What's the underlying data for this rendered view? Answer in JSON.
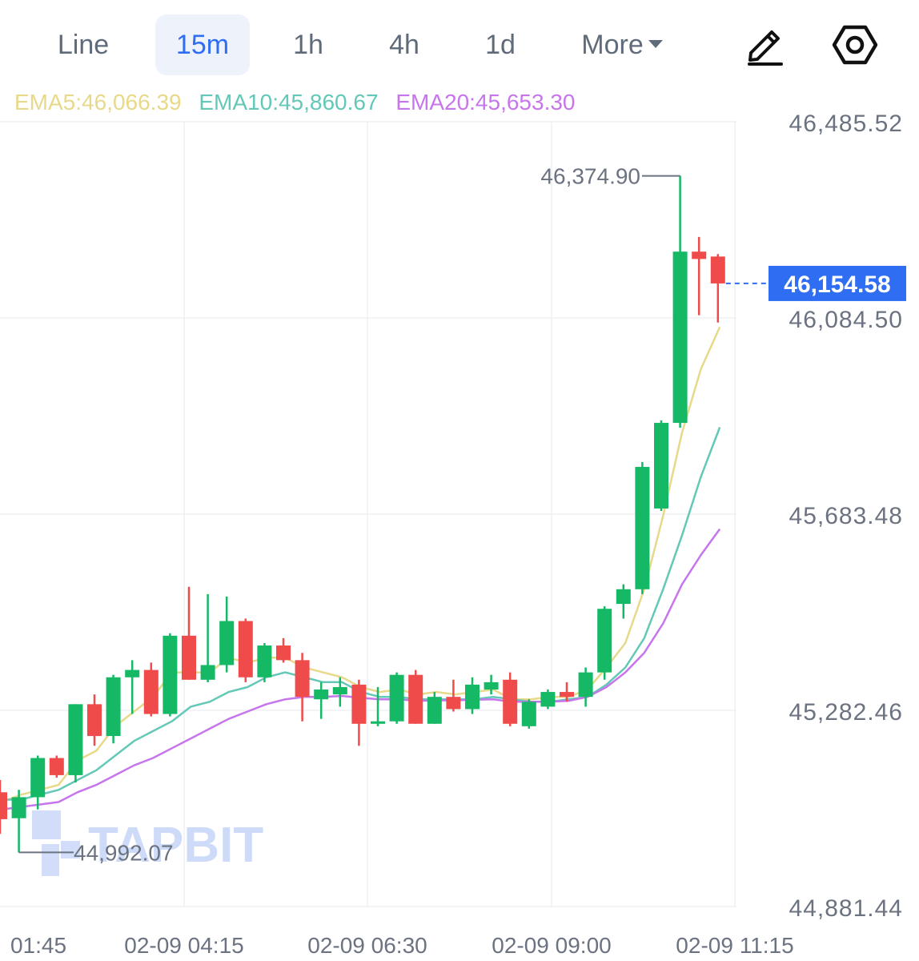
{
  "toolbar": {
    "tabs": [
      {
        "label": "Line",
        "active": false
      },
      {
        "label": "15m",
        "active": true
      },
      {
        "label": "1h",
        "active": false
      },
      {
        "label": "4h",
        "active": false
      },
      {
        "label": "1d",
        "active": false
      }
    ],
    "more_label": "More",
    "icons": [
      "pencil-icon",
      "settings-hexagon-icon"
    ]
  },
  "indicators": {
    "ema5": "EMA5:46,066.39",
    "ema10": "EMA10:45,860.67",
    "ema20": "EMA20:45,653.30",
    "colors": {
      "ema5": "#e8d98a",
      "ema10": "#63c8b7",
      "ema20": "#c775ec"
    }
  },
  "watermark": "TAPBIT",
  "colors": {
    "up": "#14b865",
    "down": "#f04b4b",
    "accent": "#2f6df3",
    "grid": "#eef0f3",
    "axis_text": "#6b7280"
  },
  "chart_data": {
    "type": "candlestick",
    "interval": "15m",
    "price_axis": {
      "ticks": [
        46485.52,
        46084.5,
        45683.48,
        45282.46,
        44881.44
      ],
      "range": [
        44881.44,
        46485.52
      ]
    },
    "time_axis": {
      "labels": [
        "01:45",
        "02-09 04:15",
        "02-09 06:30",
        "02-09 09:00",
        "02-09 11:15"
      ]
    },
    "current_price": "46,154.58",
    "high_marker": {
      "label": "46,374.90",
      "value": 46374.9
    },
    "low_marker": {
      "label": "44,992.07",
      "value": 44992.07
    },
    "candles": [
      {
        "o": 45115,
        "h": 45140,
        "l": 45030,
        "c": 45060
      },
      {
        "o": 45062,
        "h": 45120,
        "l": 44992,
        "c": 45105
      },
      {
        "o": 45105,
        "h": 45190,
        "l": 45080,
        "c": 45185
      },
      {
        "o": 45185,
        "h": 45190,
        "l": 45145,
        "c": 45150
      },
      {
        "o": 45150,
        "h": 45295,
        "l": 45135,
        "c": 45295
      },
      {
        "o": 45295,
        "h": 45315,
        "l": 45210,
        "c": 45230
      },
      {
        "o": 45230,
        "h": 45355,
        "l": 45215,
        "c": 45350
      },
      {
        "o": 45350,
        "h": 45385,
        "l": 45275,
        "c": 45365
      },
      {
        "o": 45365,
        "h": 45380,
        "l": 45270,
        "c": 45275
      },
      {
        "o": 45275,
        "h": 45440,
        "l": 45270,
        "c": 45435
      },
      {
        "o": 45435,
        "h": 45535,
        "l": 45345,
        "c": 45345
      },
      {
        "o": 45345,
        "h": 45520,
        "l": 45340,
        "c": 45375
      },
      {
        "o": 45375,
        "h": 45515,
        "l": 45360,
        "c": 45465
      },
      {
        "o": 45465,
        "h": 45470,
        "l": 45340,
        "c": 45350
      },
      {
        "o": 45350,
        "h": 45420,
        "l": 45340,
        "c": 45415
      },
      {
        "o": 45415,
        "h": 45430,
        "l": 45380,
        "c": 45385
      },
      {
        "o": 45385,
        "h": 45400,
        "l": 45260,
        "c": 45310
      },
      {
        "o": 45305,
        "h": 45340,
        "l": 45265,
        "c": 45325
      },
      {
        "o": 45315,
        "h": 45350,
        "l": 45290,
        "c": 45330
      },
      {
        "o": 45335,
        "h": 45345,
        "l": 45210,
        "c": 45255
      },
      {
        "o": 45255,
        "h": 45330,
        "l": 45250,
        "c": 45260
      },
      {
        "o": 45260,
        "h": 45360,
        "l": 45255,
        "c": 45355
      },
      {
        "o": 45355,
        "h": 45365,
        "l": 45255,
        "c": 45255
      },
      {
        "o": 45255,
        "h": 45320,
        "l": 45255,
        "c": 45310
      },
      {
        "o": 45310,
        "h": 45345,
        "l": 45280,
        "c": 45285
      },
      {
        "o": 45285,
        "h": 45350,
        "l": 45275,
        "c": 45335
      },
      {
        "o": 45325,
        "h": 45355,
        "l": 45315,
        "c": 45340
      },
      {
        "o": 45345,
        "h": 45360,
        "l": 45250,
        "c": 45255
      },
      {
        "o": 45250,
        "h": 45305,
        "l": 45245,
        "c": 45300
      },
      {
        "o": 45290,
        "h": 45325,
        "l": 45285,
        "c": 45320
      },
      {
        "o": 45320,
        "h": 45340,
        "l": 45300,
        "c": 45310
      },
      {
        "o": 45310,
        "h": 45370,
        "l": 45290,
        "c": 45360
      },
      {
        "o": 45360,
        "h": 45495,
        "l": 45345,
        "c": 45490
      },
      {
        "o": 45500,
        "h": 45540,
        "l": 45470,
        "c": 45530
      },
      {
        "o": 45530,
        "h": 45790,
        "l": 45520,
        "c": 45780
      },
      {
        "o": 45695,
        "h": 45875,
        "l": 45690,
        "c": 45870
      },
      {
        "o": 45870,
        "h": 46375,
        "l": 45860,
        "c": 46220
      },
      {
        "o": 46220,
        "h": 46250,
        "l": 46090,
        "c": 46205
      },
      {
        "o": 46210,
        "h": 46215,
        "l": 46075,
        "c": 46155
      }
    ],
    "ema": [
      {
        "name": "EMA5",
        "color": "#e8d98a",
        "values": [
          45095,
          45110,
          45120,
          45130,
          45180,
          45200,
          45250,
          45280,
          45310,
          45360,
          45360,
          45360,
          45390,
          45380,
          45390,
          45390,
          45370,
          45360,
          45350,
          45330,
          45320,
          45325,
          45315,
          45320,
          45315,
          45320,
          45325,
          45305,
          45305,
          45310,
          45310,
          45325,
          45370,
          45420,
          45530,
          45680,
          45850,
          45980,
          46066
        ]
      },
      {
        "name": "EMA10",
        "color": "#63c8b7",
        "values": [
          45100,
          45100,
          45110,
          45120,
          45140,
          45160,
          45190,
          45220,
          45240,
          45260,
          45290,
          45300,
          45320,
          45330,
          45350,
          45360,
          45350,
          45340,
          45340,
          45320,
          45310,
          45310,
          45305,
          45305,
          45305,
          45305,
          45310,
          45305,
          45300,
          45300,
          45305,
          45310,
          45335,
          45370,
          45430,
          45530,
          45640,
          45760,
          45861
        ]
      },
      {
        "name": "EMA20",
        "color": "#c775ec",
        "values": [
          45080,
          45085,
          45090,
          45095,
          45115,
          45130,
          45150,
          45170,
          45185,
          45205,
          45225,
          45245,
          45265,
          45280,
          45295,
          45305,
          45310,
          45310,
          45312,
          45308,
          45305,
          45305,
          45302,
          45303,
          45303,
          45304,
          45305,
          45300,
          45300,
          45300,
          45302,
          45310,
          45330,
          45360,
          45400,
          45460,
          45540,
          45600,
          45653
        ]
      }
    ]
  }
}
